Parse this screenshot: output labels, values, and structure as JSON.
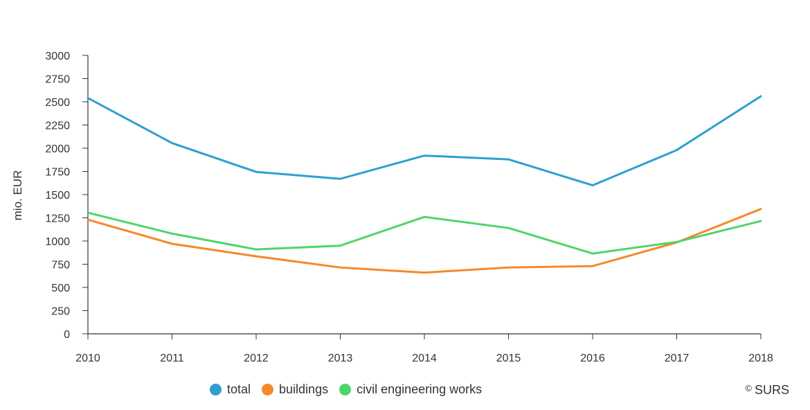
{
  "chart_data": {
    "type": "line",
    "title": "",
    "xlabel": "",
    "ylabel": "mio. EUR",
    "categories": [
      "2010",
      "2011",
      "2012",
      "2013",
      "2014",
      "2015",
      "2016",
      "2017",
      "2018"
    ],
    "ylim": [
      0,
      3000
    ],
    "yticks": [
      0,
      250,
      500,
      750,
      1000,
      1250,
      1500,
      1750,
      2000,
      2250,
      2500,
      2750,
      3000
    ],
    "grid": false,
    "legend_position": "bottom",
    "series": [
      {
        "name": "total",
        "color": "#2e9fcf",
        "values": [
          2540,
          2055,
          1745,
          1670,
          1920,
          1880,
          1600,
          1980,
          2560
        ]
      },
      {
        "name": "buildings",
        "color": "#f5892a",
        "values": [
          1230,
          970,
          835,
          715,
          660,
          715,
          730,
          985,
          1345
        ]
      },
      {
        "name": "civil engineering works",
        "color": "#4fd46a",
        "values": [
          1305,
          1080,
          910,
          950,
          1260,
          1140,
          865,
          990,
          1215
        ]
      }
    ]
  },
  "credit": {
    "symbol": "©",
    "text": "SURS"
  }
}
